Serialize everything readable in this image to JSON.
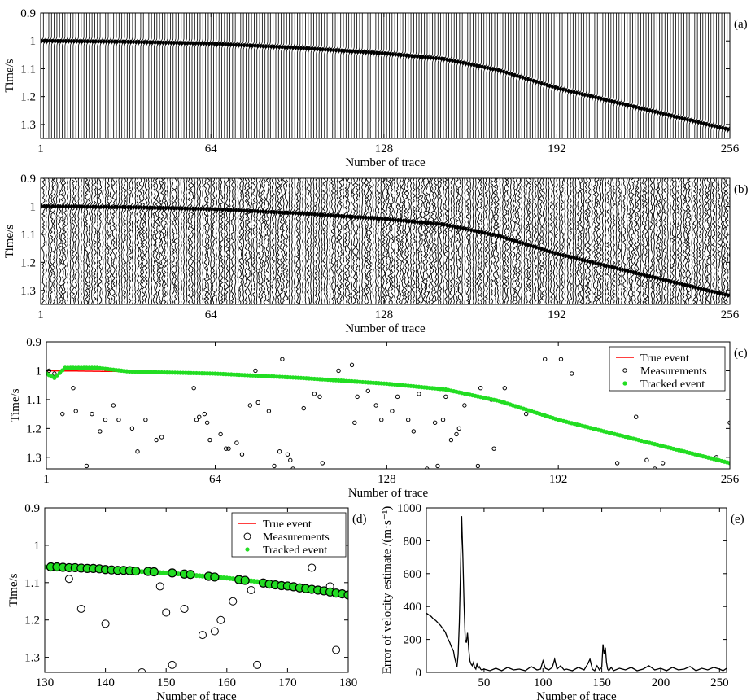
{
  "chart_data": [
    {
      "id": "a",
      "type": "seismic-wiggle",
      "panel_label": "(a)",
      "xlabel": "Number of trace",
      "ylabel": "Time/s",
      "xlim": [
        1,
        256
      ],
      "ylim": [
        0.9,
        1.35
      ],
      "xticks": [
        "1",
        "64",
        "128",
        "192",
        "256"
      ],
      "yticks": [
        "0.9",
        "1",
        "1.1",
        "1.2",
        "1.3"
      ],
      "event_curve": {
        "x": [
          1,
          32,
          64,
          96,
          128,
          150,
          170,
          192,
          224,
          256
        ],
        "y": [
          1.0,
          1.003,
          1.01,
          1.025,
          1.045,
          1.065,
          1.105,
          1.17,
          1.245,
          1.32
        ]
      }
    },
    {
      "id": "b",
      "type": "seismic-wiggle-noisy",
      "panel_label": "(b)",
      "xlabel": "Number of trace",
      "ylabel": "Time/s",
      "xlim": [
        1,
        256
      ],
      "ylim": [
        0.9,
        1.35
      ],
      "xticks": [
        "1",
        "64",
        "128",
        "192",
        "256"
      ],
      "yticks": [
        "0.9",
        "1",
        "1.1",
        "1.2",
        "1.3"
      ],
      "event_curve": {
        "x": [
          1,
          32,
          64,
          96,
          128,
          150,
          170,
          192,
          224,
          256
        ],
        "y": [
          1.0,
          1.003,
          1.01,
          1.025,
          1.045,
          1.065,
          1.105,
          1.17,
          1.245,
          1.32
        ]
      }
    },
    {
      "id": "c",
      "type": "scatter",
      "panel_label": "(c)",
      "xlabel": "Number of trace",
      "ylabel": "Time/s",
      "xlim": [
        1,
        256
      ],
      "ylim": [
        0.9,
        1.34
      ],
      "xticks": [
        "1",
        "64",
        "128",
        "192",
        "256"
      ],
      "yticks": [
        "0.9",
        "1",
        "1.1",
        "1.2",
        "1.3"
      ],
      "legend": [
        "True event",
        "Measurements",
        "Tracked event"
      ],
      "legend_position": "top-right",
      "series": [
        {
          "name": "True event",
          "color": "#ff0000",
          "style": "line",
          "x": [
            1,
            32,
            64,
            96,
            128,
            150,
            170,
            192,
            224,
            256
          ],
          "y": [
            1.0,
            1.003,
            1.01,
            1.025,
            1.045,
            1.065,
            1.105,
            1.17,
            1.245,
            1.32
          ]
        },
        {
          "name": "Measurements",
          "color": "#000000",
          "style": "open-circle",
          "points": [
            [
              2,
              1.0
            ],
            [
              4,
              1.01
            ],
            [
              7,
              1.15
            ],
            [
              11,
              1.06
            ],
            [
              12,
              1.14
            ],
            [
              16,
              1.33
            ],
            [
              18,
              1.15
            ],
            [
              21,
              1.21
            ],
            [
              23,
              1.17
            ],
            [
              26,
              1.12
            ],
            [
              28,
              1.17
            ],
            [
              33,
              1.2
            ],
            [
              35,
              1.28
            ],
            [
              38,
              1.17
            ],
            [
              42,
              1.24
            ],
            [
              44,
              1.23
            ],
            [
              56,
              1.06
            ],
            [
              57,
              1.17
            ],
            [
              58,
              1.16
            ],
            [
              60,
              1.15
            ],
            [
              61,
              1.18
            ],
            [
              62,
              1.24
            ],
            [
              66,
              1.22
            ],
            [
              68,
              1.27
            ],
            [
              69,
              1.27
            ],
            [
              72,
              1.25
            ],
            [
              74,
              1.29
            ],
            [
              77,
              1.12
            ],
            [
              79,
              1.0
            ],
            [
              80,
              1.11
            ],
            [
              84,
              1.14
            ],
            [
              86,
              1.33
            ],
            [
              88,
              1.28
            ],
            [
              89,
              0.96
            ],
            [
              91,
              1.29
            ],
            [
              92,
              1.31
            ],
            [
              93,
              1.34
            ],
            [
              97,
              1.13
            ],
            [
              101,
              1.08
            ],
            [
              103,
              1.09
            ],
            [
              104,
              1.32
            ],
            [
              110,
              1.0
            ],
            [
              115,
              0.98
            ],
            [
              116,
              1.18
            ],
            [
              117,
              1.09
            ],
            [
              121,
              1.07
            ],
            [
              124,
              1.12
            ],
            [
              126,
              1.17
            ],
            [
              130,
              1.14
            ],
            [
              132,
              1.09
            ],
            [
              136,
              1.17
            ],
            [
              138,
              1.21
            ],
            [
              140,
              1.08
            ],
            [
              143,
              1.34
            ],
            [
              146,
              1.18
            ],
            [
              147,
              1.33
            ],
            [
              149,
              1.17
            ],
            [
              150,
              1.09
            ],
            [
              152,
              1.24
            ],
            [
              154,
              1.22
            ],
            [
              155,
              1.2
            ],
            [
              157,
              1.12
            ],
            [
              162,
              1.33
            ],
            [
              163,
              1.06
            ],
            [
              167,
              1.1
            ],
            [
              168,
              1.27
            ],
            [
              172,
              1.06
            ],
            [
              180,
              1.15
            ],
            [
              187,
              0.96
            ],
            [
              193,
              0.96
            ],
            [
              197,
              1.01
            ],
            [
              214,
              1.32
            ],
            [
              221,
              1.16
            ],
            [
              225,
              1.31
            ],
            [
              228,
              1.34
            ],
            [
              231,
              1.32
            ],
            [
              251,
              1.3
            ],
            [
              256,
              1.18
            ]
          ]
        },
        {
          "name": "Tracked event",
          "color": "#22dd22",
          "style": "dot",
          "x": [
            1,
            4,
            8,
            14,
            20,
            32,
            64,
            96,
            128,
            150,
            170,
            192,
            224,
            256
          ],
          "y": [
            1.01,
            1.025,
            0.99,
            0.99,
            0.99,
            1.003,
            1.01,
            1.025,
            1.045,
            1.065,
            1.105,
            1.17,
            1.245,
            1.32
          ]
        }
      ]
    },
    {
      "id": "d",
      "type": "scatter",
      "panel_label": "(d)",
      "xlabel": "Number of trace",
      "ylabel": "Time/s",
      "xlim": [
        130,
        180
      ],
      "ylim": [
        0.9,
        1.34
      ],
      "xticks": [
        "130",
        "140",
        "150",
        "160",
        "170",
        "180"
      ],
      "yticks": [
        "0.9",
        "1",
        "1.1",
        "1.2",
        "1.3"
      ],
      "legend": [
        "True event",
        "Measurements",
        "Tracked event"
      ],
      "legend_position": "top-right",
      "series": [
        {
          "name": "True event",
          "color": "#ff0000",
          "style": "line",
          "x": [
            130,
            140,
            150,
            160,
            170,
            180
          ],
          "y": [
            1.058,
            1.065,
            1.074,
            1.088,
            1.106,
            1.132
          ]
        },
        {
          "name": "Measurements",
          "color": "#000000",
          "style": "open-circle",
          "points": [
            [
              134,
              1.09
            ],
            [
              136,
              1.17
            ],
            [
              140,
              1.21
            ],
            [
              146,
              1.34
            ],
            [
              149,
              1.11
            ],
            [
              150,
              1.18
            ],
            [
              151,
              1.32
            ],
            [
              153,
              1.17
            ],
            [
              156,
              1.24
            ],
            [
              158,
              1.23
            ],
            [
              159,
              1.2
            ],
            [
              161,
              1.15
            ],
            [
              164,
              1.12
            ],
            [
              165,
              1.32
            ],
            [
              174,
              1.06
            ],
            [
              177,
              1.11
            ],
            [
              178,
              1.28
            ]
          ]
        },
        {
          "name": "Tracked event",
          "color": "#22dd22",
          "style": "dot",
          "x": [
            130,
            140,
            150,
            160,
            170,
            180
          ],
          "y": [
            1.058,
            1.065,
            1.074,
            1.088,
            1.106,
            1.132
          ]
        },
        {
          "name": "",
          "color": "#22dd22",
          "style": "big-circle",
          "x": [
            131,
            132,
            133,
            134,
            135,
            136,
            137,
            138,
            139,
            140,
            141,
            142,
            143,
            144,
            145,
            147,
            148,
            151,
            153,
            154,
            157,
            158,
            162,
            163,
            166,
            167,
            168,
            169,
            170,
            171,
            172,
            173,
            174,
            175,
            176,
            177,
            178,
            179,
            180
          ],
          "y": [
            1.058,
            1.058,
            1.059,
            1.06,
            1.06,
            1.061,
            1.062,
            1.062,
            1.063,
            1.065,
            1.066,
            1.067,
            1.067,
            1.068,
            1.069,
            1.07,
            1.071,
            1.074,
            1.077,
            1.078,
            1.083,
            1.085,
            1.092,
            1.094,
            1.101,
            1.104,
            1.106,
            1.108,
            1.109,
            1.111,
            1.114,
            1.116,
            1.118,
            1.12,
            1.122,
            1.125,
            1.128,
            1.13,
            1.133
          ]
        }
      ]
    },
    {
      "id": "e",
      "type": "line",
      "panel_label": "(e)",
      "xlabel": "Number of trace",
      "ylabel": "Error of velocity estimate /(m·s⁻¹)",
      "xlim": [
        1,
        256
      ],
      "ylim": [
        0,
        1000
      ],
      "xticks": [
        "50",
        "100",
        "150",
        "200",
        "250"
      ],
      "yticks": [
        "0",
        "200",
        "400",
        "600",
        "800",
        "1000"
      ],
      "series": [
        {
          "name": "",
          "color": "#000000",
          "x": [
            1,
            3,
            5,
            7,
            9,
            11,
            13,
            15,
            17,
            19,
            21,
            22,
            24,
            25,
            26,
            27,
            28,
            29,
            30,
            31,
            32,
            33,
            34,
            35,
            36,
            37,
            38,
            39,
            40,
            41,
            42,
            43,
            44,
            45,
            46,
            47,
            48,
            50,
            55,
            60,
            65,
            70,
            75,
            80,
            85,
            90,
            95,
            98,
            100,
            102,
            105,
            108,
            110,
            112,
            115,
            118,
            120,
            125,
            130,
            135,
            138,
            140,
            142,
            144,
            146,
            148,
            150,
            151,
            152,
            153,
            154,
            155,
            156,
            158,
            160,
            165,
            170,
            175,
            180,
            185,
            190,
            195,
            200,
            205,
            210,
            215,
            220,
            225,
            230,
            235,
            240,
            245,
            250,
            253,
            256
          ],
          "y": [
            360,
            350,
            340,
            325,
            315,
            300,
            285,
            265,
            245,
            210,
            180,
            160,
            130,
            90,
            60,
            30,
            110,
            300,
            620,
            950,
            700,
            420,
            200,
            180,
            240,
            140,
            70,
            50,
            40,
            60,
            30,
            20,
            50,
            25,
            35,
            20,
            15,
            20,
            10,
            25,
            10,
            30,
            15,
            20,
            10,
            35,
            15,
            20,
            70,
            25,
            15,
            30,
            80,
            20,
            40,
            15,
            20,
            10,
            30,
            15,
            50,
            80,
            20,
            10,
            40,
            15,
            30,
            170,
            110,
            150,
            60,
            20,
            10,
            30,
            10,
            25,
            15,
            30,
            10,
            20,
            40,
            15,
            25,
            10,
            30,
            15,
            20,
            35,
            10,
            25,
            15,
            30,
            20,
            10,
            25
          ]
        }
      ]
    }
  ]
}
